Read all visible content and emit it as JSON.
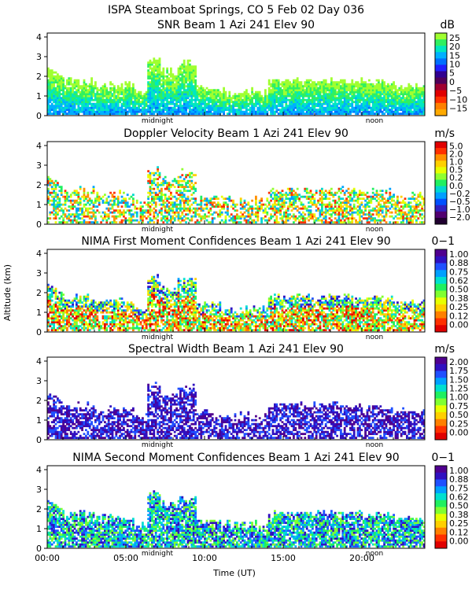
{
  "figure_title": "ISPA Steamboat Springs, CO    5 Feb 02 Day 036",
  "y_axis_label": "Altitude (km)",
  "x_axis_label": "Time (UT)",
  "x_ticks": [
    "00:00",
    "05:00",
    "10:00",
    "15:00",
    "20:00"
  ],
  "y_ticks": [
    "0",
    "1",
    "2",
    "3",
    "4"
  ],
  "day_markers": [
    "midnight",
    "noon"
  ],
  "chart_data": [
    {
      "type": "heatmap",
      "title": "SNR Beam 1 Azi 241 Elev 90",
      "unit": "dB",
      "colorbar_labels": [
        "25",
        "20",
        "15",
        "10",
        "5",
        "0",
        "−5",
        "−10",
        "−15"
      ],
      "colors": [
        "#ffaa00",
        "#ff8000",
        "#ff3000",
        "#e00000",
        "#a00030",
        "#50005a",
        "#300090",
        "#2020ff",
        "#0070ff",
        "#00b0ff",
        "#00e8c0",
        "#30f060",
        "#a0ff30"
      ],
      "x_range": [
        0,
        24
      ],
      "y_range": [
        0,
        4.2
      ],
      "xlabel": "Time (UT)",
      "ylabel": "Altitude (km)"
    },
    {
      "type": "heatmap",
      "title": "Doppler Velocity Beam 1 Azi 241 Elev 90",
      "unit": "m/s",
      "colorbar_labels": [
        "5.0",
        "2.0",
        "1.0",
        "0.5",
        "0.2",
        "0.0",
        "−0.2",
        "−0.5",
        "−1.0",
        "−2.0"
      ],
      "colors": [
        "#200030",
        "#500070",
        "#3020c0",
        "#0050ff",
        "#00a0ff",
        "#00d8d0",
        "#20f060",
        "#90ff30",
        "#e8ff00",
        "#ffd000",
        "#ff9000",
        "#ff3000",
        "#e00000"
      ],
      "x_range": [
        0,
        24
      ],
      "y_range": [
        0,
        4.2
      ],
      "xlabel": "Time (UT)",
      "ylabel": "Altitude (km)"
    },
    {
      "type": "heatmap",
      "title": "NIMA First Moment Confidences Beam 1 Azi 241 Elev 90",
      "unit": "0−1",
      "colorbar_labels": [
        "1.00",
        "0.88",
        "0.75",
        "0.62",
        "0.50",
        "0.38",
        "0.25",
        "0.12",
        "0.00"
      ],
      "colors": [
        "#e00000",
        "#ff3000",
        "#ff8000",
        "#ffd000",
        "#e8ff00",
        "#80ff30",
        "#20f060",
        "#00e0d0",
        "#00a0ff",
        "#2050ff",
        "#3010c0",
        "#500090"
      ],
      "x_range": [
        0,
        24
      ],
      "y_range": [
        0,
        4.2
      ],
      "xlabel": "Time (UT)",
      "ylabel": "Altitude (km)"
    },
    {
      "type": "heatmap",
      "title": "Spectral Width Beam 1 Azi 241 Elev 90",
      "unit": "m/s",
      "colorbar_labels": [
        "2.00",
        "1.75",
        "1.50",
        "1.25",
        "1.00",
        "0.75",
        "0.50",
        "0.25",
        "0.00"
      ],
      "colors": [
        "#e00000",
        "#ff3000",
        "#ff8000",
        "#ffd000",
        "#e8ff00",
        "#80ff30",
        "#20f060",
        "#00e0d0",
        "#00a0ff",
        "#2050ff",
        "#3010c0",
        "#500090"
      ],
      "x_range": [
        0,
        24
      ],
      "y_range": [
        0,
        4.2
      ],
      "xlabel": "Time (UT)",
      "ylabel": "Altitude (km)"
    },
    {
      "type": "heatmap",
      "title": "NIMA Second Moment Confidences Beam 1 Azi 241 Elev 90",
      "unit": "0−1",
      "colorbar_labels": [
        "1.00",
        "0.88",
        "0.75",
        "0.62",
        "0.50",
        "0.38",
        "0.25",
        "0.12",
        "0.00"
      ],
      "colors": [
        "#e00000",
        "#ff3000",
        "#ff8000",
        "#ffd000",
        "#e8ff00",
        "#80ff30",
        "#20f060",
        "#00e0d0",
        "#00a0ff",
        "#2050ff",
        "#3010c0",
        "#500090"
      ],
      "x_range": [
        0,
        24
      ],
      "y_range": [
        0,
        4.2
      ],
      "xlabel": "Time (UT)",
      "ylabel": "Altitude (km)"
    }
  ]
}
